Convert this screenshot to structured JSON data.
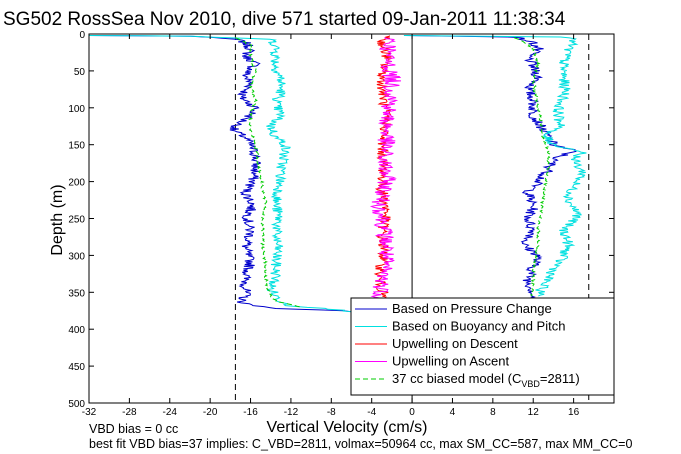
{
  "chart_data": {
    "type": "line",
    "title": "SG502 RossSea Nov 2010, dive 571 started 09-Jan-2011 11:38:34",
    "xlabel": "Vertical Velocity (cm/s)",
    "ylabel": "Depth (m)",
    "xlim": [
      -32,
      20
    ],
    "ylim": [
      500,
      0
    ],
    "y_reversed": true,
    "x_ticks": [
      -32,
      -28,
      -24,
      -20,
      -16,
      -12,
      -8,
      -4,
      0,
      4,
      8,
      12,
      16
    ],
    "y_ticks": [
      0,
      50,
      100,
      150,
      200,
      250,
      300,
      350,
      400,
      450,
      500
    ],
    "grid": false,
    "legend_position": "bottom-right",
    "reference_lines": {
      "vertical_solid": [
        0
      ],
      "vertical_dashed": [
        -17.5,
        17.5
      ]
    },
    "series": [
      {
        "name": "Based on Pressure Change",
        "color": "#0000cc",
        "descent": [
          [
            -33,
            2
          ],
          [
            -22,
            3
          ],
          [
            -17.5,
            7
          ],
          [
            -16.5,
            12
          ],
          [
            -16,
            20
          ],
          [
            -16.5,
            30
          ],
          [
            -15.5,
            40
          ],
          [
            -16.5,
            55
          ],
          [
            -16,
            70
          ],
          [
            -17,
            85
          ],
          [
            -15.5,
            100
          ],
          [
            -16,
            110
          ],
          [
            -17,
            120
          ],
          [
            -17.8,
            130
          ],
          [
            -16.5,
            140
          ],
          [
            -16,
            150
          ],
          [
            -15.5,
            165
          ],
          [
            -15.5,
            180
          ],
          [
            -15.8,
            200
          ],
          [
            -16.5,
            215
          ],
          [
            -15.8,
            230
          ],
          [
            -16.3,
            250
          ],
          [
            -16,
            270
          ],
          [
            -16.5,
            290
          ],
          [
            -16,
            310
          ],
          [
            -16.5,
            330
          ],
          [
            -16.5,
            345
          ],
          [
            -16.5,
            355
          ],
          [
            -17,
            362
          ],
          [
            -16,
            368
          ],
          [
            -13,
            372
          ],
          [
            -7,
            375
          ],
          [
            -4.5,
            378
          ]
        ],
        "ascent": [
          [
            -0.3,
            2
          ],
          [
            10,
            4
          ],
          [
            11,
            7
          ],
          [
            12,
            12
          ],
          [
            12.5,
            20
          ],
          [
            11.5,
            30
          ],
          [
            12,
            45
          ],
          [
            12.5,
            60
          ],
          [
            11.5,
            75
          ],
          [
            12,
            90
          ],
          [
            12,
            110
          ],
          [
            13,
            130
          ],
          [
            14,
            150
          ],
          [
            16,
            158
          ],
          [
            14,
            170
          ],
          [
            13.5,
            185
          ],
          [
            12.5,
            200
          ],
          [
            11.5,
            215
          ],
          [
            12,
            235
          ],
          [
            11.5,
            250
          ],
          [
            12,
            270
          ],
          [
            11,
            285
          ],
          [
            12.5,
            300
          ],
          [
            12,
            315
          ],
          [
            11.5,
            335
          ],
          [
            12,
            350
          ],
          [
            11.8,
            360
          ]
        ]
      },
      {
        "name": "Based on Buoyancy and Pitch",
        "color": "#00e0e0",
        "descent": [
          [
            -33,
            2
          ],
          [
            -22,
            3
          ],
          [
            -14,
            7
          ],
          [
            -13.5,
            15
          ],
          [
            -13.5,
            30
          ],
          [
            -13.5,
            45
          ],
          [
            -13,
            60
          ],
          [
            -13,
            80
          ],
          [
            -13.5,
            95
          ],
          [
            -13,
            110
          ],
          [
            -14,
            125
          ],
          [
            -13.5,
            140
          ],
          [
            -12.5,
            150
          ],
          [
            -12.8,
            170
          ],
          [
            -13,
            190
          ],
          [
            -13.2,
            210
          ],
          [
            -13.5,
            230
          ],
          [
            -13.2,
            250
          ],
          [
            -13.5,
            270
          ],
          [
            -13.3,
            290
          ],
          [
            -13.5,
            310
          ],
          [
            -13.5,
            330
          ],
          [
            -14,
            345
          ],
          [
            -13.5,
            355
          ],
          [
            -13,
            362
          ],
          [
            -12,
            368
          ],
          [
            -8,
            373
          ],
          [
            -4.5,
            378
          ]
        ],
        "ascent": [
          [
            -0.3,
            2
          ],
          [
            15,
            4
          ],
          [
            16,
            8
          ],
          [
            15.5,
            20
          ],
          [
            15,
            40
          ],
          [
            15,
            60
          ],
          [
            15.2,
            80
          ],
          [
            14.5,
            100
          ],
          [
            14.5,
            115
          ],
          [
            15,
            125
          ],
          [
            13,
            135
          ],
          [
            14,
            150
          ],
          [
            17,
            160
          ],
          [
            16,
            170
          ],
          [
            16.5,
            180
          ],
          [
            17,
            190
          ],
          [
            16,
            205
          ],
          [
            15.5,
            225
          ],
          [
            16.5,
            245
          ],
          [
            15,
            265
          ],
          [
            15.5,
            285
          ],
          [
            15,
            300
          ],
          [
            14,
            320
          ],
          [
            13,
            340
          ],
          [
            12.5,
            355
          ]
        ]
      },
      {
        "name": "Upwelling on Descent",
        "color": "#ff0000",
        "descent": [
          [
            -2,
            2
          ],
          [
            -3,
            10
          ],
          [
            -2.5,
            30
          ],
          [
            -3,
            60
          ],
          [
            -2.8,
            90
          ],
          [
            -2.5,
            120
          ],
          [
            -3,
            150
          ],
          [
            -2.8,
            180
          ],
          [
            -3,
            210
          ],
          [
            -2.5,
            240
          ],
          [
            -3,
            270
          ],
          [
            -2.8,
            300
          ],
          [
            -3.3,
            330
          ],
          [
            -2.8,
            360
          ],
          [
            -3,
            380
          ]
        ]
      },
      {
        "name": "Upwelling on Ascent",
        "color": "#ff00ff",
        "ascent": [
          [
            -2,
            5
          ],
          [
            -2.5,
            30
          ],
          [
            -2,
            60
          ],
          [
            -2,
            90
          ],
          [
            -2.5,
            110
          ],
          [
            -2.5,
            140
          ],
          [
            -2.8,
            170
          ],
          [
            -2.5,
            200
          ],
          [
            -3.2,
            230
          ],
          [
            -2.8,
            260
          ],
          [
            -2.5,
            290
          ],
          [
            -2.8,
            320
          ],
          [
            -3,
            345
          ],
          [
            -3.2,
            360
          ]
        ]
      },
      {
        "name": "37 cc biased model (C_VBD=2811)",
        "color": "#00cc00",
        "dashed": true,
        "descent": [
          [
            -17.5,
            5
          ],
          [
            -16,
            15
          ],
          [
            -16,
            30
          ],
          [
            -15.5,
            50
          ],
          [
            -16,
            70
          ],
          [
            -15.5,
            90
          ],
          [
            -16,
            110
          ],
          [
            -16,
            130
          ],
          [
            -15.5,
            150
          ],
          [
            -15.3,
            170
          ],
          [
            -15,
            190
          ],
          [
            -14.8,
            210
          ],
          [
            -14.5,
            230
          ],
          [
            -14.8,
            250
          ],
          [
            -14.8,
            270
          ],
          [
            -14.8,
            290
          ],
          [
            -14.5,
            310
          ],
          [
            -14.5,
            330
          ],
          [
            -14.3,
            345
          ],
          [
            -14,
            355
          ],
          [
            -13.5,
            362
          ],
          [
            -11,
            370
          ]
        ],
        "ascent": [
          [
            10,
            5
          ],
          [
            11,
            10
          ],
          [
            12,
            20
          ],
          [
            12.5,
            40
          ],
          [
            12,
            60
          ],
          [
            12.2,
            80
          ],
          [
            12.5,
            100
          ],
          [
            12.8,
            120
          ],
          [
            13,
            140
          ],
          [
            13.5,
            160
          ],
          [
            13.5,
            180
          ],
          [
            13.3,
            200
          ],
          [
            13,
            220
          ],
          [
            12.8,
            240
          ],
          [
            12.5,
            260
          ],
          [
            12.5,
            280
          ],
          [
            12.3,
            300
          ],
          [
            12,
            320
          ],
          [
            12,
            340
          ],
          [
            11.8,
            355
          ]
        ]
      }
    ],
    "legend_entries": [
      {
        "label": "Based on Pressure Change",
        "color": "#0000cc",
        "dashed": false
      },
      {
        "label": "Based on Buoyancy and Pitch",
        "color": "#00e0e0",
        "dashed": false
      },
      {
        "label": "Upwelling on Descent",
        "color": "#ff0000",
        "dashed": false
      },
      {
        "label": "Upwelling on Ascent",
        "color": "#ff00ff",
        "dashed": false
      },
      {
        "label": "37 cc biased model (C",
        "sub": "VBD",
        "label_tail": "=2811)",
        "color": "#00cc00",
        "dashed": true
      }
    ]
  },
  "footer": {
    "line1": "VBD bias = 0 cc",
    "line2": "best fit VBD bias=37 implies: C_VBD=2811, volmax=50964 cc, max SM_CC=587, max MM_CC=0"
  }
}
